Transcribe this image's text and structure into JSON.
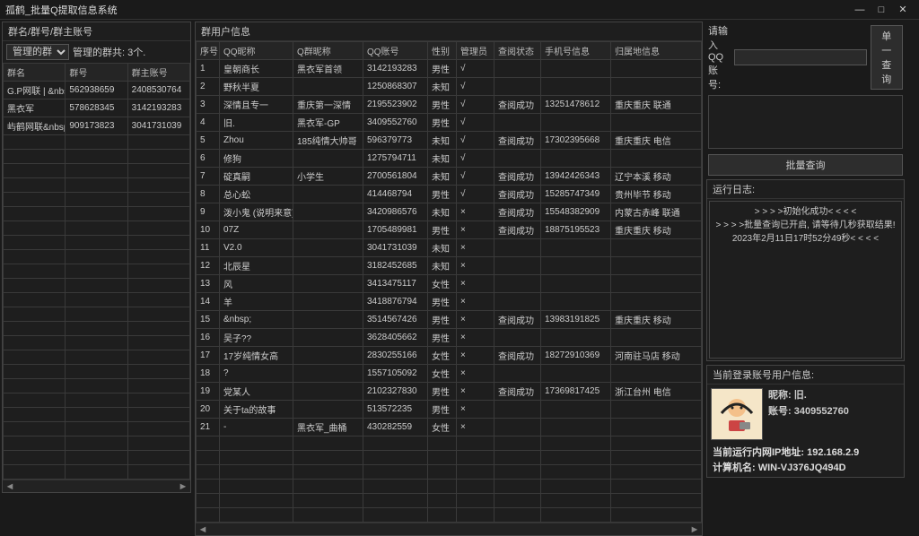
{
  "window": {
    "title": "孤鹤_批量Q提取信息系统",
    "min": "—",
    "max": "□",
    "close": "✕"
  },
  "left": {
    "panel_title": "群名/群号/群主账号",
    "dropdown": "管理的群",
    "count_label": "管理的群共: 3个.",
    "columns": [
      "群名",
      "群号",
      "群主账号"
    ],
    "rows": [
      [
        "G.P网联 | &nbsp;...",
        "562938659",
        "2408530764"
      ],
      [
        "黑衣军",
        "578628345",
        "3142193283"
      ],
      [
        "屿鹤网联&nbsp;...",
        "909173823",
        "3041731039"
      ]
    ]
  },
  "mid": {
    "panel_title": "群用户信息",
    "columns": [
      "序号",
      "QQ昵称",
      "Q群昵称",
      "QQ账号",
      "性别",
      "管理员",
      "查阅状态",
      "手机号信息",
      "归属地信息"
    ],
    "rows": [
      [
        "1",
        "皇朝商长",
        "黑衣军首领",
        "3142193283",
        "男性",
        "√",
        "",
        "",
        ""
      ],
      [
        "2",
        "野秋半夏",
        "",
        "1250868307",
        "未知",
        "√",
        "",
        "",
        ""
      ],
      [
        "3",
        "深情且专一",
        "重庆第一深情",
        "2195523902",
        "男性",
        "√",
        "查阅成功",
        "13251478612",
        "重庆重庆 联通"
      ],
      [
        "4",
        "旧.",
        "黑衣军-GP",
        "3409552760",
        "男性",
        "√",
        "",
        "",
        ""
      ],
      [
        "5",
        "Zhou",
        "185纯情大帅哥",
        "596379773",
        "未知",
        "√",
        "查阅成功",
        "17302395668",
        "重庆重庆 电信"
      ],
      [
        "6",
        "修狗",
        "",
        "1275794711",
        "未知",
        "√",
        "",
        "",
        ""
      ],
      [
        "7",
        "碇真嗣",
        "小学生",
        "2700561804",
        "未知",
        "√",
        "查阅成功",
        "13942426343",
        "辽宁本溪 移动"
      ],
      [
        "8",
        "总心蚣",
        "",
        "414468794",
        "男性",
        "√",
        "查阅成功",
        "15285747349",
        "贵州毕节 移动"
      ],
      [
        "9",
        "泼小鬼   (说明来意)",
        "",
        "3420986576",
        "未知",
        "×",
        "查阅成功",
        "15548382909",
        "内蒙古赤峰 联通"
      ],
      [
        "10",
        "07Z",
        "",
        "1705489981",
        "男性",
        "×",
        "查阅成功",
        "18875195523",
        "重庆重庆 移动"
      ],
      [
        "11",
        "V2.0",
        "",
        "3041731039",
        "未知",
        "×",
        "",
        "",
        ""
      ],
      [
        "12",
        "北辰星",
        "",
        "3182452685",
        "未知",
        "×",
        "",
        "",
        ""
      ],
      [
        "13",
        "风",
        "",
        "3413475117",
        "女性",
        "×",
        "",
        "",
        ""
      ],
      [
        "14",
        "羊",
        "",
        "3418876794",
        "男性",
        "×",
        "",
        "",
        ""
      ],
      [
        "15",
        "&nbsp;",
        "",
        "3514567426",
        "男性",
        "×",
        "查阅成功",
        "13983191825",
        "重庆重庆 移动"
      ],
      [
        "16",
        "吴子??",
        "",
        "3628405662",
        "男性",
        "×",
        "",
        "",
        ""
      ],
      [
        "17",
        "17岁纯情女高",
        "",
        "2830255166",
        "女性",
        "×",
        "查阅成功",
        "18272910369",
        "河南驻马店 移动"
      ],
      [
        "18",
        "?",
        "",
        "1557105092",
        "女性",
        "×",
        "",
        "",
        ""
      ],
      [
        "19",
        "党某人",
        "",
        "2102327830",
        "男性",
        "×",
        "查阅成功",
        "17369817425",
        "浙江台州 电信"
      ],
      [
        "20",
        "关于ta的故事",
        "",
        "513572235",
        "男性",
        "×",
        "",
        "",
        ""
      ],
      [
        "21",
        "-",
        "黑衣军_曲桶",
        "430282559",
        "女性",
        "×",
        "",
        "",
        ""
      ]
    ]
  },
  "right": {
    "search_label": "请输入QQ账号:",
    "btn_single": "单一查询",
    "btn_batch": "批量查询",
    "log_title": "运行日志:",
    "log_lines": [
      "> > > >初始化成功< < < <",
      "> > > >批量查询已开启,  请等待几秒获取结果!",
      "2023年2月11日17时52分49秒< < < <"
    ],
    "user_title": "当前登录账号用户信息:",
    "nick_label": "昵称:",
    "nick": "旧.",
    "acct_label": "账号:",
    "acct": "3409552760",
    "ip_label": "当前运行内网IP地址:",
    "ip": "192.168.2.9",
    "host_label": "计算机名:",
    "host": "WIN-VJ376JQ494D"
  }
}
